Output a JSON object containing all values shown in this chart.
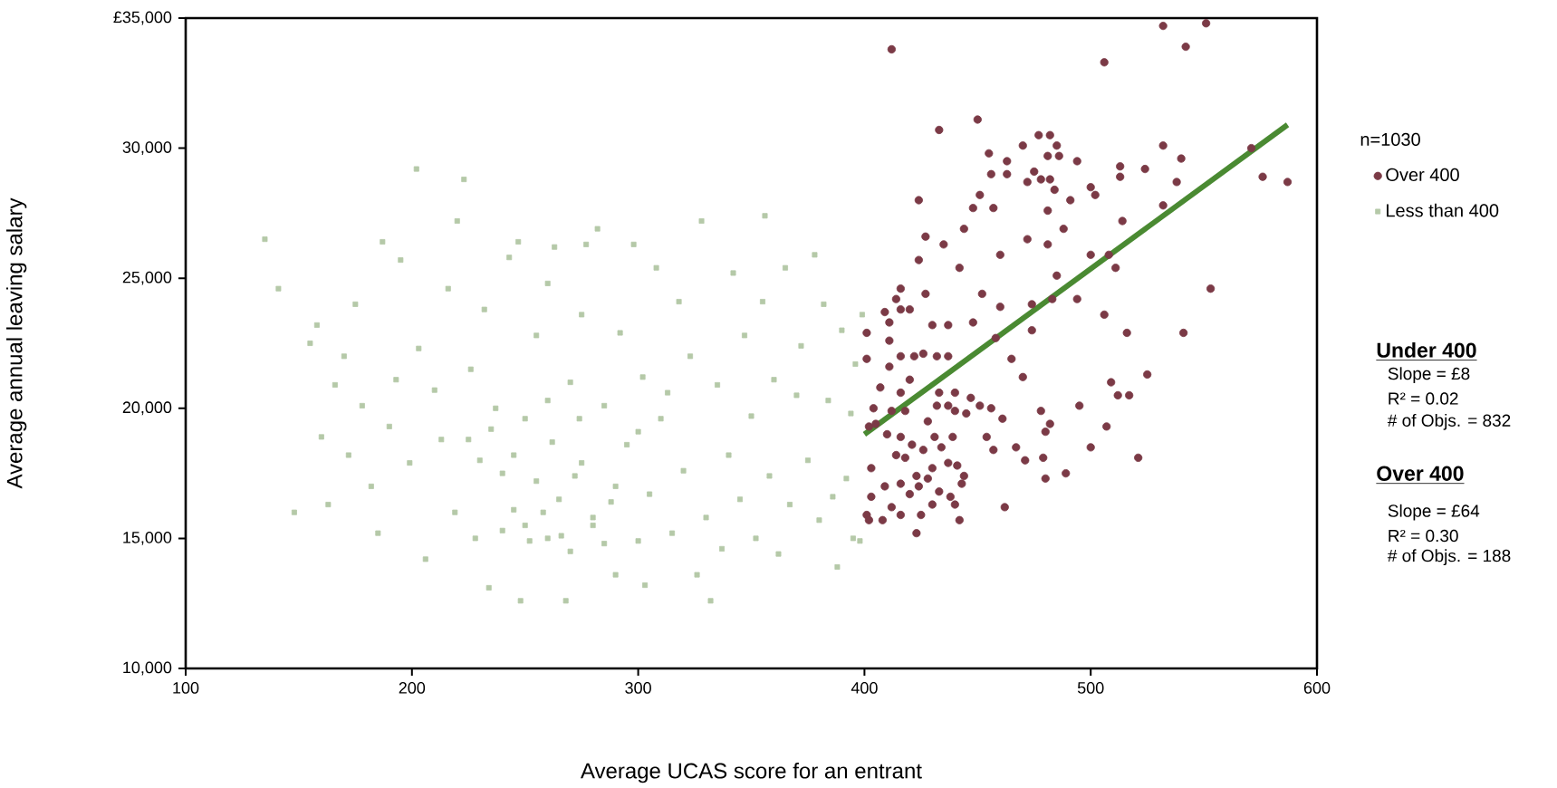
{
  "chart_data": {
    "type": "scatter",
    "xlabel": "Average UCAS score for an entrant",
    "ylabel": "Average annual leaving salary",
    "legend_title": "n=1030",
    "legend": "top right",
    "grid": false,
    "xlim": [
      100,
      600
    ],
    "ylim": [
      10000,
      35000
    ],
    "xticks": [
      100,
      200,
      300,
      400,
      500,
      600
    ],
    "yticks": [
      {
        "value": 10000,
        "label": "10,000"
      },
      {
        "value": 15000,
        "label": "15,000"
      },
      {
        "value": 20000,
        "label": "20,000"
      },
      {
        "value": 25000,
        "label": "25,000"
      },
      {
        "value": 30000,
        "label": "30,000"
      },
      {
        "value": 35000,
        "label": "£35,000"
      }
    ],
    "annotations": [
      "Under 400",
      "Slope = £8",
      "R² = 0.02",
      "# of Objs. = 832",
      "Over 400",
      "Slope = £64",
      "R² = 0.30",
      "# of Objs. = 188"
    ],
    "series": [
      {
        "name": "Over 400",
        "color": "#7b3a46",
        "marker": "circle",
        "x": [
          412,
          506,
          532,
          551,
          542,
          433,
          450,
          477,
          470,
          482,
          485,
          481,
          486,
          463,
          455,
          494,
          513,
          524,
          532,
          540,
          571,
          576,
          587,
          538,
          513,
          500,
          502,
          491,
          482,
          478,
          472,
          475,
          484,
          456,
          463,
          424,
          451,
          448,
          457,
          481,
          532,
          514,
          488,
          444,
          427,
          435,
          472,
          481,
          460,
          500,
          508,
          424,
          442,
          511,
          485,
          416,
          427,
          452,
          414,
          460,
          474,
          483,
          494,
          553,
          506,
          409,
          416,
          411,
          420,
          430,
          437,
          448,
          474,
          516,
          541,
          401,
          422,
          411,
          416,
          426,
          432,
          437,
          458,
          465,
          401,
          411,
          420,
          470,
          509,
          525,
          407,
          416,
          433,
          440,
          447,
          437,
          432,
          451,
          478,
          495,
          512,
          517,
          404,
          412,
          418,
          428,
          440,
          445,
          456,
          461,
          402,
          405,
          410,
          416,
          421,
          431,
          426,
          434,
          439,
          454,
          457,
          467,
          482,
          480,
          507,
          500,
          521,
          403,
          414,
          418,
          423,
          430,
          437,
          441,
          444,
          479,
          471,
          489,
          480,
          443,
          416,
          420,
          424,
          428,
          433,
          438,
          440,
          409,
          403,
          412,
          416,
          425,
          430,
          442,
          462,
          401,
          402,
          408,
          423
        ],
        "values": [
          33800,
          33300,
          34700,
          34800,
          33900,
          30700,
          31100,
          30500,
          30100,
          30500,
          30100,
          29700,
          29700,
          29500,
          29800,
          29500,
          29300,
          29200,
          30100,
          29600,
          30000,
          28900,
          28700,
          28700,
          28900,
          28500,
          28200,
          28000,
          28800,
          28800,
          28700,
          29100,
          28400,
          29000,
          29000,
          28000,
          28200,
          27700,
          27700,
          27600,
          27800,
          27200,
          26900,
          26900,
          26600,
          26300,
          26500,
          26300,
          25900,
          25900,
          25900,
          25700,
          25400,
          25400,
          25100,
          24600,
          24400,
          24400,
          24200,
          23900,
          24000,
          24200,
          24200,
          24600,
          23600,
          23700,
          23800,
          23300,
          23800,
          23200,
          23200,
          23300,
          23000,
          22900,
          22900,
          22900,
          22000,
          22600,
          22000,
          22100,
          22000,
          22000,
          22700,
          21900,
          21900,
          21600,
          21100,
          21200,
          21000,
          21300,
          20800,
          20600,
          20600,
          20600,
          20400,
          20100,
          20100,
          20100,
          19900,
          20100,
          20500,
          20500,
          20000,
          19900,
          19900,
          19500,
          19900,
          19800,
          20000,
          19600,
          19300,
          19400,
          19000,
          18900,
          18600,
          18900,
          18400,
          18500,
          18900,
          18900,
          18400,
          18500,
          19400,
          19100,
          19300,
          18500,
          18100,
          17700,
          18200,
          18100,
          17400,
          17700,
          17900,
          17800,
          17400,
          18100,
          18000,
          17500,
          17300,
          17100,
          17100,
          16700,
          17000,
          17300,
          16800,
          16600,
          16300,
          17000,
          16600,
          16200,
          15900,
          15900,
          16300,
          15700,
          16200,
          15900,
          15700,
          15700,
          15200
        ]
      },
      {
        "name": "Less than 400",
        "color": "#b5c9a8",
        "marker": "square",
        "x": [
          135,
          141,
          148,
          155,
          158,
          160,
          163,
          166,
          170,
          172,
          175,
          178,
          182,
          185,
          187,
          190,
          193,
          195,
          199,
          202,
          203,
          206,
          210,
          213,
          216,
          219,
          220,
          223,
          226,
          228,
          230,
          232,
          234,
          237,
          240,
          243,
          245,
          247,
          248,
          250,
          252,
          255,
          258,
          260,
          262,
          263,
          266,
          268,
          270,
          272,
          274,
          275,
          277,
          280,
          282,
          285,
          288,
          290,
          292,
          295,
          298,
          300,
          302,
          303,
          305,
          308,
          310,
          313,
          315,
          318,
          320,
          323,
          326,
          328,
          330,
          332,
          335,
          337,
          340,
          342,
          345,
          347,
          350,
          352,
          355,
          356,
          358,
          360,
          362,
          365,
          367,
          370,
          372,
          375,
          378,
          380,
          382,
          384,
          386,
          388,
          390,
          392,
          394,
          396,
          398,
          399,
          395,
          250,
          260,
          265,
          270,
          280,
          285,
          240,
          245,
          255,
          275,
          290,
          235,
          260,
          300,
          225
        ],
        "values": [
          26500,
          24600,
          16000,
          22500,
          23200,
          18900,
          16300,
          20900,
          22000,
          18200,
          24000,
          20100,
          17000,
          15200,
          26400,
          19300,
          21100,
          25700,
          17900,
          29200,
          22300,
          14200,
          20700,
          18800,
          24600,
          16000,
          27200,
          28800,
          21500,
          15000,
          18000,
          23800,
          13100,
          20000,
          17500,
          25800,
          16100,
          26400,
          12600,
          19600,
          14900,
          22800,
          16000,
          24800,
          18700,
          26200,
          15100,
          12600,
          21000,
          17400,
          19600,
          23600,
          26300,
          15500,
          26900,
          20100,
          16400,
          13600,
          22900,
          18600,
          26300,
          14900,
          21200,
          13200,
          16700,
          25400,
          19600,
          20600,
          15200,
          24100,
          17600,
          22000,
          13600,
          27200,
          15800,
          12600,
          20900,
          14600,
          18200,
          25200,
          16500,
          22800,
          19700,
          15000,
          24100,
          27400,
          17400,
          21100,
          14400,
          25400,
          16300,
          20500,
          22400,
          18000,
          25900,
          15700,
          24000,
          20300,
          16600,
          13900,
          23000,
          17300,
          19800,
          21700,
          14900,
          23600,
          15000,
          15500,
          15000,
          16500,
          14500,
          15800,
          14800,
          15300,
          18200,
          17200,
          17900,
          17000,
          19200,
          20300,
          19100,
          18800
        ]
      },
      {
        "type": "line",
        "color": "#4a8a32",
        "marker": "none",
        "x": [
          400,
          587
        ],
        "values": [
          19000,
          30900
        ]
      }
    ]
  }
}
